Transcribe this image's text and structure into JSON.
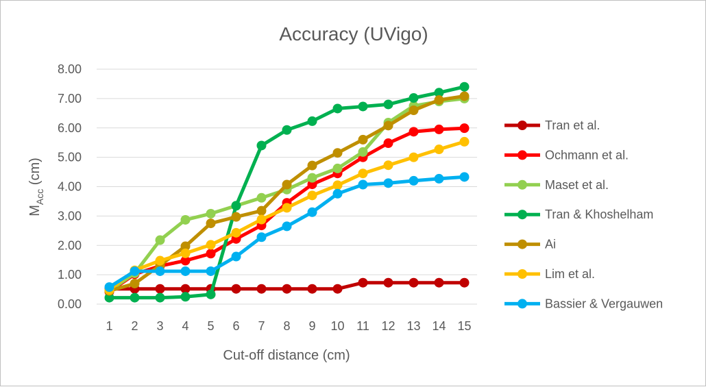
{
  "chart_data": {
    "type": "line",
    "title": "Accuracy (UVigo)",
    "xlabel": "Cut-off distance (cm)",
    "ylabel": {
      "main": "M",
      "sub": "Acc",
      "suffix": " (cm)"
    },
    "categories": [
      "1",
      "2",
      "3",
      "4",
      "5",
      "6",
      "7",
      "8",
      "9",
      "10",
      "11",
      "12",
      "13",
      "14",
      "15"
    ],
    "y_ticks": [
      "0.00",
      "1.00",
      "2.00",
      "3.00",
      "4.00",
      "5.00",
      "6.00",
      "7.00",
      "8.00"
    ],
    "ylim": [
      0,
      8
    ],
    "grid": true,
    "legend_position": "right",
    "series": [
      {
        "name": "Tran et al.",
        "color": "#c00000",
        "values": [
          0.52,
          0.52,
          0.52,
          0.52,
          0.52,
          0.52,
          0.52,
          0.52,
          0.52,
          0.52,
          0.73,
          0.73,
          0.73,
          0.73,
          0.73
        ]
      },
      {
        "name": "Ochmann et al.",
        "color": "#ff0000",
        "values": [
          0.42,
          1.02,
          1.3,
          1.48,
          1.72,
          2.22,
          2.68,
          3.45,
          4.08,
          4.45,
          5.0,
          5.48,
          5.87,
          5.95,
          5.99
        ]
      },
      {
        "name": "Maset et al.",
        "color": "#92d050",
        "values": [
          0.45,
          1.05,
          2.18,
          2.87,
          3.08,
          3.35,
          3.62,
          3.9,
          4.3,
          4.62,
          5.18,
          6.18,
          6.75,
          6.9,
          7.0
        ]
      },
      {
        "name": "Tran & Khoshelham",
        "color": "#00b050",
        "values": [
          0.22,
          0.22,
          0.22,
          0.25,
          0.33,
          3.35,
          5.4,
          5.93,
          6.23,
          6.66,
          6.73,
          6.8,
          7.02,
          7.2,
          7.4
        ]
      },
      {
        "name": "Ai",
        "color": "#bf8f00",
        "values": [
          0.45,
          0.7,
          1.32,
          1.97,
          2.75,
          2.97,
          3.18,
          4.07,
          4.72,
          5.15,
          5.6,
          6.08,
          6.6,
          6.95,
          7.08
        ]
      },
      {
        "name": "Lim et al.",
        "color": "#ffc000",
        "values": [
          0.48,
          1.15,
          1.48,
          1.73,
          2.02,
          2.43,
          2.88,
          3.28,
          3.7,
          4.05,
          4.45,
          4.73,
          5.0,
          5.27,
          5.53
        ]
      },
      {
        "name": "Bassier & Vergauwen",
        "color": "#00b0f0",
        "values": [
          0.58,
          1.12,
          1.12,
          1.12,
          1.12,
          1.62,
          2.28,
          2.65,
          3.13,
          3.76,
          4.07,
          4.12,
          4.2,
          4.27,
          4.33
        ]
      }
    ]
  }
}
